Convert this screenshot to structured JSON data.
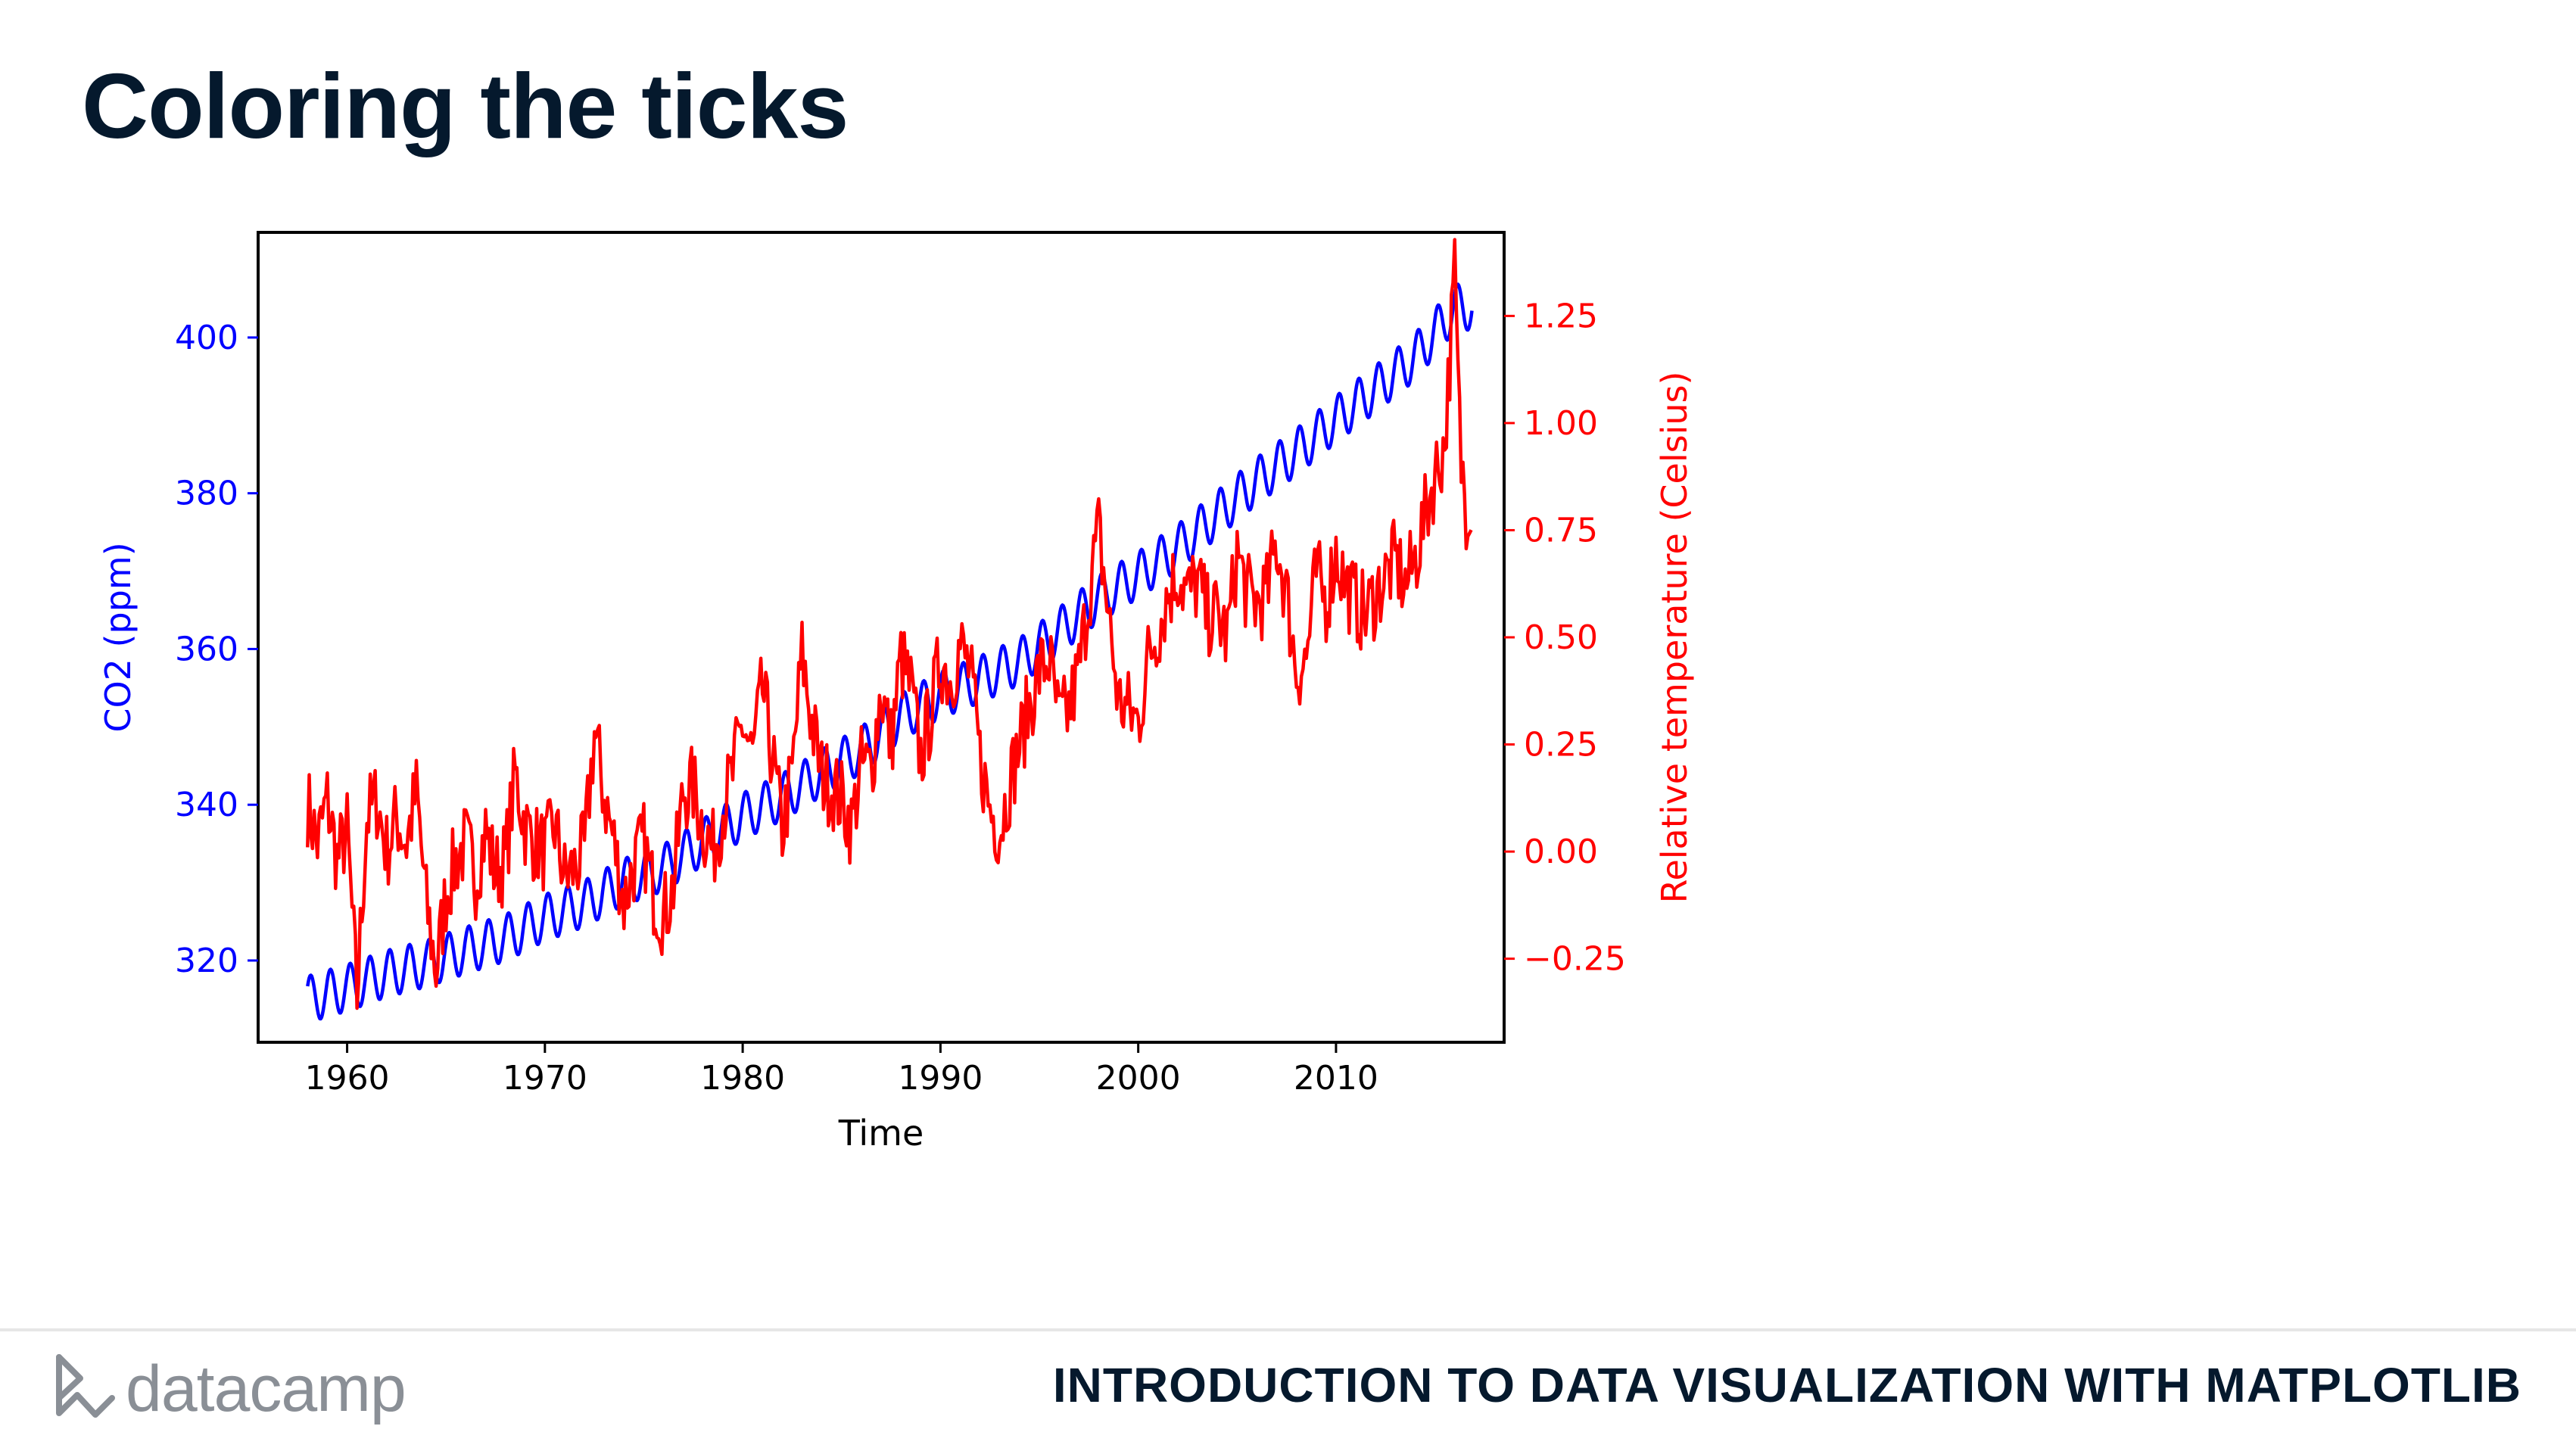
{
  "slide": {
    "title": "Coloring the ticks",
    "brand": "datacamp",
    "course": "INTRODUCTION TO DATA VISUALIZATION WITH MATPLOTLIB"
  },
  "colors": {
    "co2": "#0000ff",
    "temp": "#ff0000",
    "ink": "#05192d",
    "axis": "#000000"
  },
  "chart_data": {
    "type": "line",
    "xlabel": "Time",
    "xlim": [
      1955.5,
      2018.5
    ],
    "x_ticks": [
      1960,
      1970,
      1980,
      1990,
      2000,
      2010
    ],
    "y_left": {
      "label": "CO2 (ppm)",
      "ylim": [
        309.5,
        413.5
      ],
      "ticks": [
        320,
        340,
        360,
        380,
        400
      ],
      "color": "#0000ff"
    },
    "y_right": {
      "label": "Relative temperature (Celsius)",
      "ylim": [
        -0.445,
        1.445
      ],
      "ticks": [
        -0.25,
        0.0,
        0.25,
        0.5,
        0.75,
        1.0,
        1.25
      ],
      "tick_labels": [
        "−0.25",
        "0.00",
        "0.25",
        "0.50",
        "0.75",
        "1.00",
        "1.25"
      ],
      "color": "#ff0000"
    },
    "series": [
      {
        "axis": "left",
        "color": "#0000ff",
        "x": [
          1958.0,
          1960.0,
          1962.0,
          1964.0,
          1966.0,
          1968.0,
          1970.0,
          1972.0,
          1974.0,
          1976.0,
          1978.0,
          1980.0,
          1982.0,
          1984.0,
          1986.0,
          1988.0,
          1990.0,
          1992.0,
          1994.0,
          1996.0,
          1998.0,
          2000.0,
          2002.0,
          2004.0,
          2006.0,
          2008.0,
          2010.0,
          2012.0,
          2014.0,
          2016.0,
          2016.9
        ],
        "y": [
          315.0,
          316.5,
          318.3,
          319.6,
          321.3,
          322.9,
          325.5,
          327.3,
          330.1,
          331.9,
          335.2,
          338.5,
          341.0,
          344.1,
          347.0,
          351.3,
          354.1,
          356.1,
          358.4,
          362.3,
          366.5,
          369.5,
          373.0,
          377.3,
          381.6,
          385.3,
          389.5,
          393.4,
          397.5,
          403.8,
          404.0
        ],
        "seasonal_amplitude_ppm": 3.0
      },
      {
        "axis": "right",
        "color": "#ff0000",
        "x": [
          1958.0,
          1958.5,
          1959.0,
          1959.5,
          1960.0,
          1960.5,
          1961.0,
          1961.5,
          1962.0,
          1962.5,
          1963.0,
          1963.5,
          1964.0,
          1964.5,
          1965.0,
          1965.5,
          1966.0,
          1966.5,
          1967.0,
          1967.5,
          1968.0,
          1968.5,
          1969.0,
          1969.5,
          1970.0,
          1970.5,
          1971.0,
          1971.5,
          1972.0,
          1972.5,
          1973.0,
          1973.5,
          1974.0,
          1974.5,
          1975.0,
          1975.5,
          1976.0,
          1976.5,
          1977.0,
          1977.5,
          1978.0,
          1978.5,
          1979.0,
          1979.5,
          1980.0,
          1980.5,
          1981.0,
          1981.5,
          1982.0,
          1982.5,
          1983.0,
          1983.5,
          1984.0,
          1984.5,
          1985.0,
          1985.5,
          1986.0,
          1986.5,
          1987.0,
          1987.5,
          1988.0,
          1988.5,
          1989.0,
          1989.5,
          1990.0,
          1990.5,
          1991.0,
          1991.5,
          1992.0,
          1992.5,
          1993.0,
          1993.5,
          1994.0,
          1994.5,
          1995.0,
          1995.5,
          1996.0,
          1996.5,
          1997.0,
          1997.5,
          1998.0,
          1998.5,
          1999.0,
          1999.5,
          2000.0,
          2000.5,
          2001.0,
          2001.5,
          2002.0,
          2002.5,
          2003.0,
          2003.5,
          2004.0,
          2004.5,
          2005.0,
          2005.5,
          2006.0,
          2006.5,
          2007.0,
          2007.5,
          2008.0,
          2008.5,
          2009.0,
          2009.5,
          2010.0,
          2010.5,
          2011.0,
          2011.5,
          2012.0,
          2012.5,
          2013.0,
          2013.5,
          2014.0,
          2014.5,
          2015.0,
          2015.5,
          2016.0,
          2016.3,
          2016.6,
          2016.9
        ],
        "y": [
          0.11,
          0.02,
          0.12,
          -0.02,
          0.05,
          -0.34,
          0.08,
          0.12,
          0.0,
          0.08,
          0.02,
          0.14,
          -0.12,
          -0.28,
          -0.1,
          -0.02,
          0.02,
          -0.06,
          0.05,
          -0.05,
          -0.02,
          0.18,
          0.06,
          0.02,
          0.0,
          0.06,
          -0.06,
          -0.04,
          0.0,
          0.28,
          0.13,
          0.02,
          -0.12,
          -0.03,
          0.02,
          -0.1,
          -0.15,
          -0.08,
          0.14,
          0.15,
          0.06,
          0.0,
          0.1,
          0.18,
          0.3,
          0.22,
          0.38,
          0.22,
          0.05,
          0.18,
          0.46,
          0.3,
          0.18,
          0.15,
          0.12,
          0.06,
          0.2,
          0.19,
          0.38,
          0.25,
          0.45,
          0.38,
          0.22,
          0.32,
          0.45,
          0.4,
          0.48,
          0.42,
          0.22,
          0.1,
          0.05,
          0.16,
          0.25,
          0.34,
          0.42,
          0.45,
          0.3,
          0.33,
          0.42,
          0.6,
          0.75,
          0.55,
          0.35,
          0.33,
          0.3,
          0.45,
          0.52,
          0.6,
          0.65,
          0.6,
          0.63,
          0.55,
          0.55,
          0.5,
          0.7,
          0.6,
          0.58,
          0.6,
          0.72,
          0.6,
          0.42,
          0.45,
          0.65,
          0.58,
          0.7,
          0.62,
          0.58,
          0.55,
          0.6,
          0.64,
          0.68,
          0.62,
          0.68,
          0.78,
          0.88,
          0.95,
          1.35,
          0.92,
          0.8,
          0.85
        ],
        "noise_amplitude_celsius": 0.1
      }
    ]
  }
}
